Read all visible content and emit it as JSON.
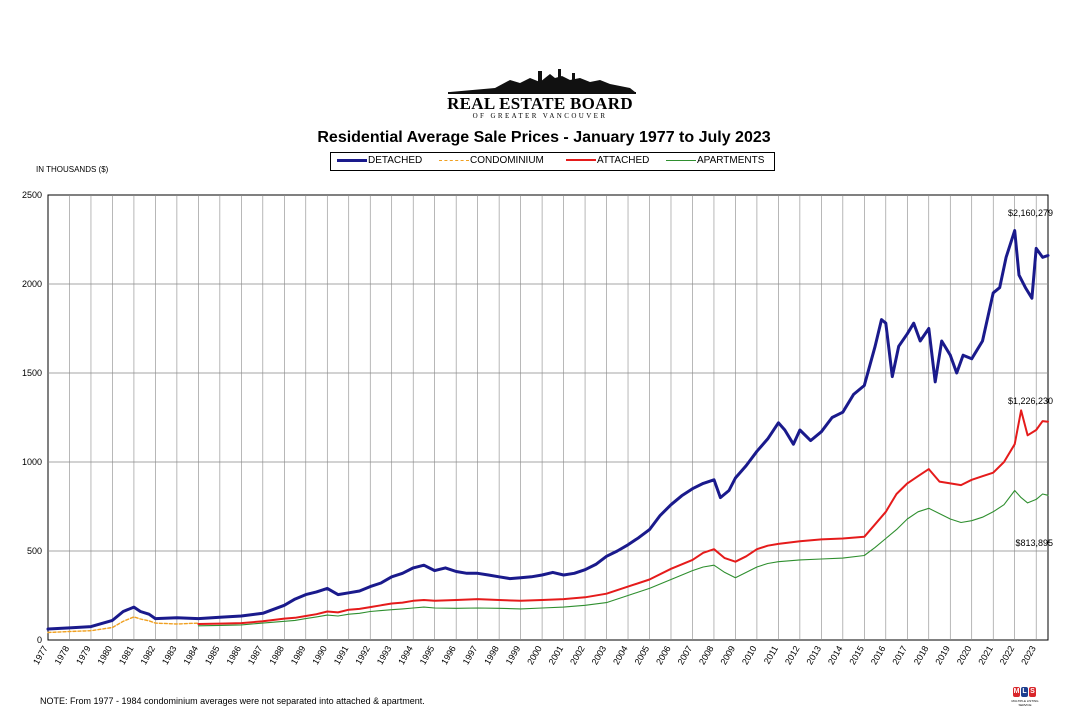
{
  "logo": {
    "name": "REAL ESTATE BOARD",
    "subtitle": "OF GREATER VANCOUVER"
  },
  "units_label": "IN THOUSANDS ($)",
  "note": "NOTE:  From 1977 - 1984 condominium averages were not separated into attached & apartment.",
  "mls_badge": {
    "letters": [
      "M",
      "L",
      "S"
    ],
    "caption": "MULTIPLE LISTING SERVICE"
  },
  "colors": {
    "detached": "#1a1a8c",
    "condominium": "#f0a020",
    "attached": "#e51b1b",
    "apartments": "#2f8f2f",
    "grid": "#888888"
  },
  "chart_data": {
    "type": "line",
    "title": "Residential Average Sale Prices  -  January 1977 to July 2023",
    "xlabel": "",
    "ylabel": "IN THOUSANDS ($)",
    "ylim": [
      0,
      2500
    ],
    "yticks": [
      0,
      500,
      1000,
      1500,
      2000,
      2500
    ],
    "xlim": [
      1977,
      2023.55
    ],
    "categories": [
      "1977",
      "1978",
      "1979",
      "1980",
      "1981",
      "1982",
      "1983",
      "1984",
      "1985",
      "1986",
      "1987",
      "1988",
      "1989",
      "1990",
      "1991",
      "1992",
      "1993",
      "1994",
      "1995",
      "1996",
      "1997",
      "1998",
      "1999",
      "2000",
      "2001",
      "2002",
      "2003",
      "2004",
      "2005",
      "2006",
      "2007",
      "2008",
      "2009",
      "2010",
      "2011",
      "2012",
      "2013",
      "2014",
      "2015",
      "2016",
      "2017",
      "2018",
      "2019",
      "2020",
      "2021",
      "2022",
      "2023"
    ],
    "legend_position": "top-center",
    "grid": true,
    "series": [
      {
        "name": "DETACHED",
        "style": "solid-thick",
        "x": [
          1977,
          1978,
          1979,
          1980,
          1980.5,
          1981,
          1981.3,
          1981.7,
          1982,
          1983,
          1984,
          1985,
          1986,
          1987,
          1988,
          1988.5,
          1989,
          1989.5,
          1990,
          1990.5,
          1991,
          1991.5,
          1992,
          1992.5,
          1993,
          1993.5,
          1994,
          1994.5,
          1995,
          1995.5,
          1996,
          1996.5,
          1997,
          1997.5,
          1998,
          1998.5,
          1999,
          1999.5,
          2000,
          2000.5,
          2001,
          2001.5,
          2002,
          2002.5,
          2003,
          2003.5,
          2004,
          2004.5,
          2005,
          2005.5,
          2006,
          2006.5,
          2007,
          2007.5,
          2008,
          2008.3,
          2008.7,
          2009,
          2009.5,
          2010,
          2010.5,
          2011,
          2011.3,
          2011.7,
          2012,
          2012.5,
          2013,
          2013.5,
          2014,
          2014.5,
          2015,
          2015.5,
          2015.8,
          2016,
          2016.3,
          2016.6,
          2017,
          2017.3,
          2017.6,
          2018,
          2018.3,
          2018.6,
          2019,
          2019.3,
          2019.6,
          2020,
          2020.5,
          2021,
          2021.3,
          2021.6,
          2022,
          2022.2,
          2022.5,
          2022.8,
          2023,
          2023.3,
          2023.55
        ],
        "values": [
          62,
          68,
          75,
          110,
          160,
          185,
          160,
          145,
          120,
          125,
          120,
          128,
          135,
          150,
          195,
          230,
          255,
          270,
          290,
          255,
          265,
          275,
          300,
          320,
          355,
          375,
          405,
          420,
          390,
          405,
          385,
          375,
          375,
          365,
          355,
          345,
          350,
          355,
          365,
          380,
          365,
          375,
          395,
          425,
          470,
          500,
          535,
          575,
          620,
          700,
          760,
          810,
          850,
          880,
          900,
          800,
          840,
          910,
          980,
          1060,
          1130,
          1220,
          1180,
          1100,
          1180,
          1120,
          1170,
          1250,
          1280,
          1380,
          1430,
          1650,
          1800,
          1780,
          1480,
          1650,
          1720,
          1780,
          1680,
          1750,
          1450,
          1680,
          1600,
          1500,
          1600,
          1580,
          1680,
          1950,
          1980,
          2150,
          2300,
          2050,
          1980,
          1920,
          2200,
          2150,
          2160
        ]
      },
      {
        "name": "CONDOMINIUM",
        "style": "dashed",
        "x": [
          1977,
          1978,
          1979,
          1980,
          1980.5,
          1981,
          1981.3,
          1981.7,
          1982,
          1983,
          1984
        ],
        "values": [
          42,
          48,
          52,
          70,
          105,
          130,
          118,
          108,
          95,
          90,
          95
        ]
      },
      {
        "name": "ATTACHED",
        "style": "solid",
        "x": [
          1984,
          1985,
          1986,
          1987,
          1988,
          1988.5,
          1989,
          1989.5,
          1990,
          1990.5,
          1991,
          1991.5,
          1992,
          1992.5,
          1993,
          1993.5,
          1994,
          1994.5,
          1995,
          1996,
          1997,
          1998,
          1999,
          2000,
          2001,
          2002,
          2003,
          2004,
          2005,
          2006,
          2007,
          2007.5,
          2008,
          2008.5,
          2009,
          2009.5,
          2010,
          2010.5,
          2011,
          2012,
          2013,
          2014,
          2015,
          2015.5,
          2016,
          2016.5,
          2017,
          2017.5,
          2018,
          2018.5,
          2019,
          2019.5,
          2020,
          2020.5,
          2021,
          2021.5,
          2022,
          2022.3,
          2022.6,
          2023,
          2023.3,
          2023.55
        ],
        "values": [
          90,
          92,
          95,
          105,
          120,
          125,
          135,
          145,
          160,
          155,
          170,
          175,
          185,
          195,
          205,
          210,
          220,
          225,
          220,
          225,
          230,
          225,
          220,
          225,
          230,
          240,
          260,
          300,
          340,
          400,
          450,
          490,
          510,
          460,
          440,
          470,
          510,
          530,
          540,
          555,
          565,
          570,
          580,
          650,
          720,
          820,
          880,
          920,
          960,
          890,
          880,
          870,
          900,
          920,
          940,
          1000,
          1100,
          1290,
          1150,
          1180,
          1230,
          1226
        ]
      },
      {
        "name": "APARTMENTS",
        "style": "solid-thin",
        "x": [
          1984,
          1985,
          1986,
          1987,
          1988,
          1988.5,
          1989,
          1989.5,
          1990,
          1990.5,
          1991,
          1991.5,
          1992,
          1992.5,
          1993,
          1993.5,
          1994,
          1994.5,
          1995,
          1996,
          1997,
          1998,
          1999,
          2000,
          2001,
          2002,
          2003,
          2004,
          2005,
          2006,
          2007,
          2007.5,
          2008,
          2008.5,
          2009,
          2009.5,
          2010,
          2010.5,
          2011,
          2012,
          2013,
          2014,
          2015,
          2015.5,
          2016,
          2016.5,
          2017,
          2017.5,
          2018,
          2018.5,
          2019,
          2019.5,
          2020,
          2020.5,
          2021,
          2021.5,
          2022,
          2022.3,
          2022.6,
          2023,
          2023.3,
          2023.55
        ],
        "values": [
          80,
          82,
          85,
          95,
          105,
          110,
          120,
          130,
          140,
          135,
          145,
          150,
          160,
          165,
          170,
          175,
          180,
          185,
          180,
          178,
          180,
          178,
          175,
          180,
          185,
          195,
          210,
          250,
          290,
          340,
          390,
          410,
          420,
          380,
          350,
          380,
          410,
          430,
          440,
          450,
          455,
          460,
          475,
          520,
          570,
          620,
          680,
          720,
          740,
          710,
          680,
          660,
          670,
          690,
          720,
          760,
          840,
          800,
          770,
          790,
          820,
          813
        ]
      }
    ],
    "annotations": [
      "$2,160,279",
      "$1,226,230",
      "$813,895"
    ]
  }
}
